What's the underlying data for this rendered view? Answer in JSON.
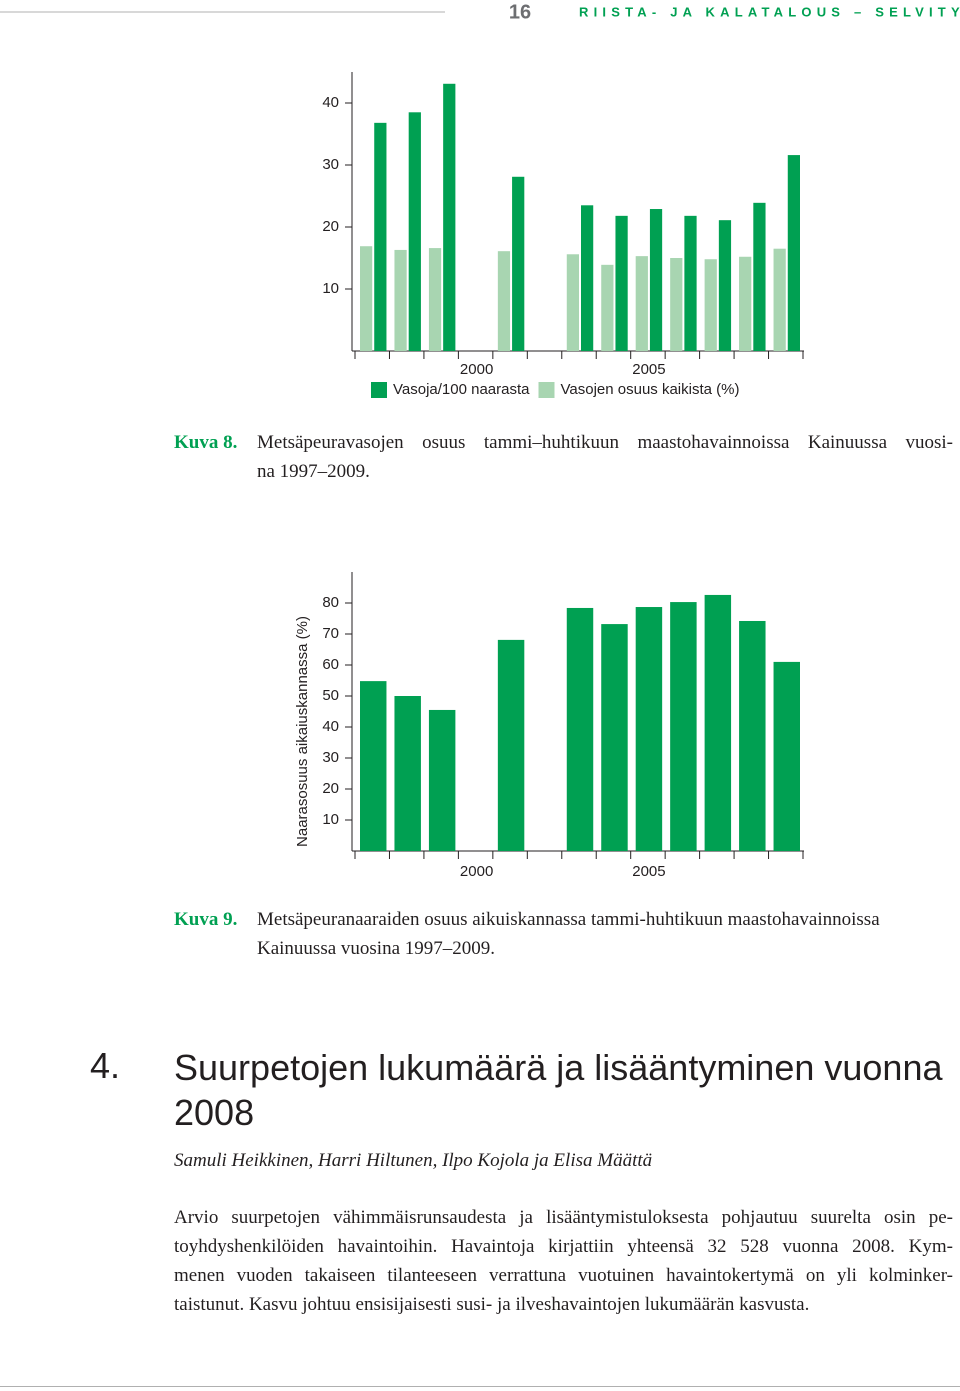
{
  "header": {
    "page_number": "16",
    "publication": "RIISTA- JA KALATALOUS – SELVITYKSIÄ"
  },
  "chart_data": [
    {
      "type": "bar",
      "categories": [
        null,
        null,
        null,
        "2000",
        null,
        null,
        null,
        null,
        "2005",
        null,
        null,
        null,
        null
      ],
      "series": [
        {
          "name": "Vasoja/100 naarasta",
          "color": "#00a052",
          "values": [
            36.8,
            38.5,
            43.1,
            null,
            28.1,
            null,
            23.5,
            21.8,
            22.9,
            21.8,
            21.1,
            23.9,
            31.6
          ]
        },
        {
          "name": "Vasojen osuus kaikista (%)",
          "color": "#a8d5b1",
          "values": [
            16.9,
            16.3,
            16.6,
            null,
            16.1,
            null,
            15.6,
            13.9,
            15.3,
            15.0,
            14.8,
            15.2,
            16.5
          ]
        }
      ],
      "ylim": [
        0,
        45
      ],
      "yticks": [
        10,
        20,
        30,
        40
      ],
      "legend": "bottom"
    },
    {
      "type": "bar",
      "ylabel": "Naarasosuus aikaiuskannassa (%)",
      "categories": [
        null,
        null,
        null,
        "2000",
        null,
        null,
        null,
        null,
        "2005",
        null,
        null,
        null,
        null
      ],
      "values": [
        54.8,
        50.0,
        45.5,
        null,
        68.1,
        null,
        78.4,
        73.2,
        78.7,
        80.3,
        82.6,
        74.2,
        61.0
      ],
      "color": "#00a052",
      "ylim": [
        0,
        90
      ],
      "yticks": [
        10,
        20,
        30,
        40,
        50,
        60,
        70,
        80
      ]
    }
  ],
  "captions": [
    {
      "label": "Kuva 8.",
      "lines": [
        "Metsäpeuravasojen osuus tammi–huhtikuun maastohavainnoissa Kainuussa vuosi-",
        "na 1997–2009."
      ]
    },
    {
      "label": "Kuva 9.",
      "lines": [
        "Metsäpeuranaaraiden osuus aikuiskannassa tammi-huhtikuun maastohavainnoissa",
        "Kainuussa vuosina 1997–2009."
      ]
    }
  ],
  "section": {
    "number": "4.",
    "title": "Suurpetojen lukumäärä ja lisääntyminen vuonna 2008",
    "authors": "Samuli Heikkinen, Harri Hiltunen, Ilpo Kojola ja Elisa Määttä",
    "paragraph_lines": [
      "Arvio suurpetojen vähimmäisrunsaudesta ja lisääntymistuloksesta pohjautuu suurelta osin pe-",
      "toyhdyshenkilöiden havaintoihin. Havaintoja kirjattiin yhteensä 32 528 vuonna 2008. Kym-",
      "menen vuoden takaiseen tilanteeseen verrattuna vuotuinen havaintokertymä on yli kolminker-",
      "taistunut. Kasvu johtuu ensisijaisesti susi- ja ilveshavaintojen lukumäärän kasvusta."
    ]
  }
}
